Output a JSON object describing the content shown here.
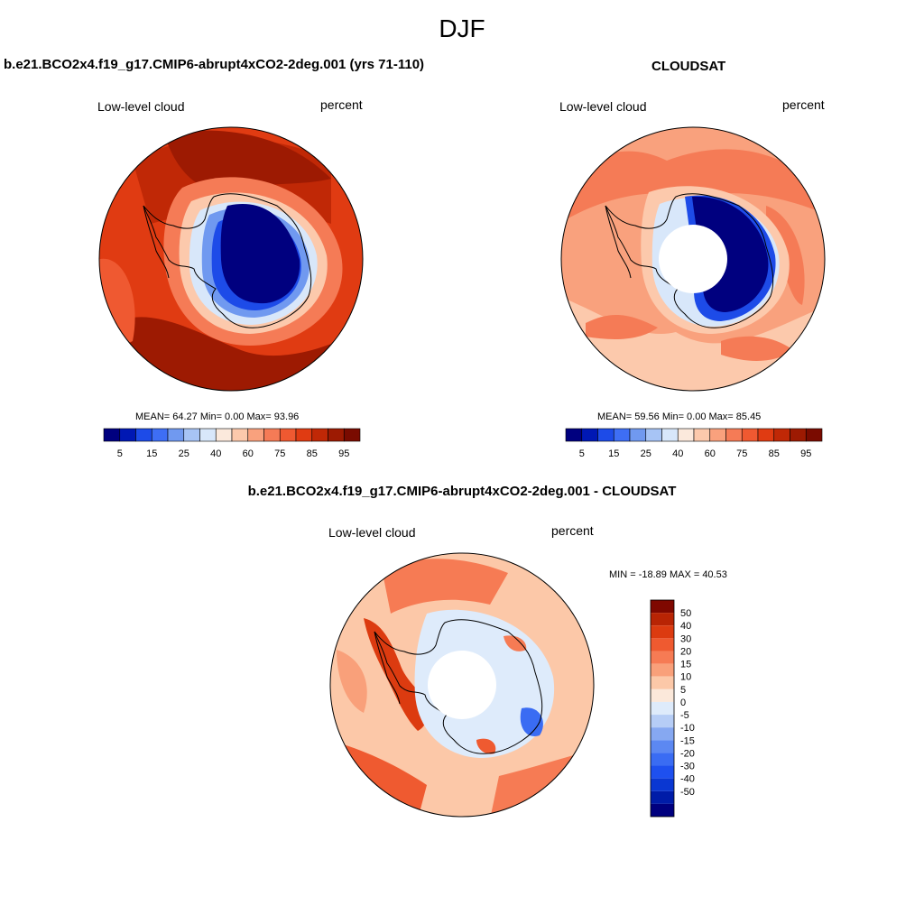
{
  "page": {
    "title": "DJF"
  },
  "colors": {
    "abs_scale": [
      "#00007f",
      "#0018b4",
      "#1d4be8",
      "#3e6ef5",
      "#7099f0",
      "#a7c4f5",
      "#d8e7fa",
      "#fbe9dc",
      "#fcc9ac",
      "#f9a17d",
      "#f57b56",
      "#ef5931",
      "#e03b12",
      "#c02806",
      "#9d1a02",
      "#7a0b00"
    ],
    "diff_scale": [
      "#00007f",
      "#001ca8",
      "#0a37d2",
      "#1e50ef",
      "#3a6cf3",
      "#5c88f2",
      "#86a8f1",
      "#b6cdf6",
      "#deebfb",
      "#fbe8da",
      "#fcc8a8",
      "#f9a07a",
      "#f67b54",
      "#ef5a30",
      "#dc3b10",
      "#b82404",
      "#7f0800"
    ],
    "land": "#12128a",
    "pole_hole": "#ffffff"
  },
  "chart_data": [
    {
      "type": "heatmap",
      "projection": "south-polar-stereographic",
      "title": "b.e21.BCO2x4.f19_g17.CMIP6-abrupt4xCO2-2deg.001 (yrs 71-110)",
      "left_label": "Low-level cloud",
      "right_label": "percent",
      "stats": {
        "mean_label": "MEAN=",
        "mean": "64.27",
        "min_label": "Min=",
        "min": "0.00",
        "max_label": "Max=",
        "max": "93.96"
      },
      "stats_text": "MEAN=  64.27  Min=   0.00  Max=  93.96",
      "colorbar_labels": [
        "5",
        "15",
        "25",
        "40",
        "60",
        "75",
        "85",
        "95"
      ],
      "ocean_range": [
        72,
        96
      ],
      "pole_hole": false
    },
    {
      "type": "heatmap",
      "projection": "south-polar-stereographic",
      "title": "CLOUDSAT",
      "left_label": "Low-level cloud",
      "right_label": "percent",
      "stats": {
        "mean_label": "MEAN=",
        "mean": "59.56",
        "min_label": "Min=",
        "min": "0.00",
        "max_label": "Max=",
        "max": "85.45"
      },
      "stats_text": "MEAN=  59.56  Min=   0.00  Max=  85.45",
      "colorbar_labels": [
        "5",
        "15",
        "25",
        "40",
        "60",
        "75",
        "85",
        "95"
      ],
      "ocean_range": [
        60,
        80
      ],
      "pole_hole": true
    },
    {
      "type": "heatmap",
      "projection": "south-polar-stereographic",
      "title": "b.e21.BCO2x4.f19_g17.CMIP6-abrupt4xCO2-2deg.001 - CLOUDSAT",
      "left_label": "Low-level cloud",
      "right_label": "percent",
      "stats_text": "MIN = -18.89 MAX =  40.53",
      "colorbar_labels": [
        "50",
        "40",
        "30",
        "20",
        "15",
        "10",
        "5",
        "0",
        "-5",
        "-10",
        "-15",
        "-20",
        "-30",
        "-40",
        "-50"
      ],
      "ocean_range": [
        5,
        25
      ],
      "pole_hole": true
    }
  ]
}
